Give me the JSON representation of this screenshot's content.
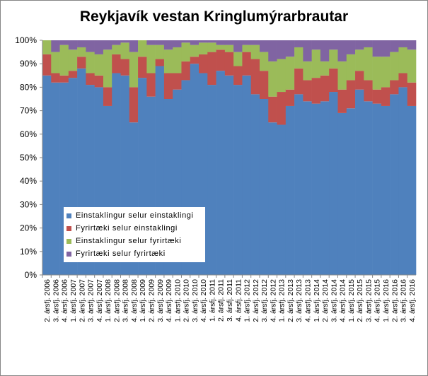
{
  "chart_data": {
    "type": "bar",
    "stacked": "percent",
    "title": "Reykjavík vestan Kringlumýrarbrautar",
    "xlabel": "",
    "ylabel": "",
    "ylim": [
      0,
      100
    ],
    "yticks": [
      "0%",
      "10%",
      "20%",
      "30%",
      "40%",
      "50%",
      "60%",
      "70%",
      "80%",
      "90%",
      "100%"
    ],
    "legend_position": "lower-left inside",
    "categories": [
      "2. ársfj. 2006",
      "3. ársfj. 2006",
      "4. ársfj. 2006",
      "1. ársfj. 2007",
      "2. ársfj. 2007",
      "3. ársfj. 2007",
      "4. ársfj. 2007",
      "1. ársfj. 2008",
      "2. ársfj. 2008",
      "3. ársfj. 2008",
      "4. ársfj. 2008",
      "1. ársfj. 2009",
      "2. ársfj. 2009",
      "3. ársfj. 2009",
      "4. ársfj. 2009",
      "1. ársfj. 2010",
      "2. ársfj. 2010",
      "3. ársfj. 2010",
      "4. ársfj. 2010",
      "1. ársfj. 2011",
      "2. ársfj. 2011",
      "3. ársfj. 2011",
      "4. ársfj. 2011",
      "1. ársfj. 2012",
      "2. ársfj. 2012",
      "3. ársfj. 2012",
      "4. ársfj. 2012",
      "1. ársfj. 2013",
      "2. ársfj. 2013",
      "3. ársfj. 2013",
      "4. ársfj. 2013",
      "1. ársfj. 2014",
      "2. ársfj. 2014",
      "3. ársfj. 2014",
      "4. ársfj. 2014",
      "1. ársfj. 2015",
      "2. ársfj. 2015",
      "3. ársfj. 2015",
      "4. ársfj. 2015",
      "1. ársfj. 2016",
      "2. ársfj. 2016",
      "3. ársfj. 2016",
      "4. ársfj. 2016"
    ],
    "series": [
      {
        "name": "Einstaklingur selur einstaklingi",
        "color": "#4f81bd",
        "values": [
          85,
          82,
          82,
          84,
          88,
          81,
          80,
          72,
          86,
          85,
          65,
          84,
          76,
          89,
          75,
          79,
          83,
          90,
          86,
          81,
          87,
          85,
          81,
          85,
          77,
          75,
          65,
          64,
          72,
          77,
          74,
          73,
          74,
          78,
          69,
          71,
          79,
          74,
          73,
          72,
          77,
          80,
          72
        ]
      },
      {
        "name": "Fyrirtæki selur einstaklingi",
        "color": "#c0504d",
        "values": [
          9,
          4,
          3,
          3,
          5,
          5,
          5,
          8,
          8,
          7,
          15,
          9,
          10,
          3,
          11,
          7,
          8,
          3,
          8,
          14,
          9,
          10,
          8,
          10,
          15,
          12,
          11,
          14,
          7,
          11,
          9,
          11,
          11,
          10,
          10,
          12,
          8,
          9,
          6,
          8,
          6,
          6,
          10
        ]
      },
      {
        "name": "Einstaklingur selur fyrirtæki",
        "color": "#9bbb59",
        "values": [
          6,
          9,
          13,
          9,
          4,
          9,
          9,
          16,
          4,
          7,
          15,
          7,
          12,
          6,
          10,
          11,
          8,
          5,
          5,
          4,
          2,
          3,
          6,
          3,
          6,
          8,
          15,
          14,
          14,
          9,
          8,
          12,
          6,
          8,
          12,
          11,
          9,
          14,
          14,
          13,
          12,
          11,
          14
        ]
      },
      {
        "name": "Fyrirtæki selur fyrirtæki",
        "color": "#8064a2",
        "values": [
          0,
          5,
          2,
          4,
          3,
          5,
          6,
          4,
          2,
          1,
          5,
          0,
          2,
          2,
          4,
          3,
          1,
          2,
          1,
          1,
          2,
          2,
          5,
          2,
          2,
          5,
          9,
          8,
          7,
          3,
          9,
          4,
          9,
          4,
          9,
          6,
          4,
          3,
          7,
          7,
          5,
          3,
          4
        ]
      }
    ]
  }
}
